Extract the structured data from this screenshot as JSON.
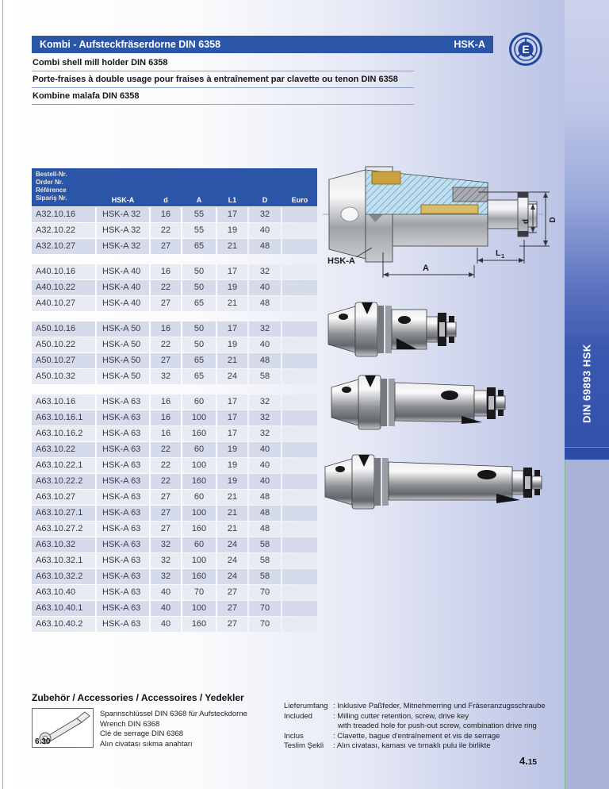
{
  "header": {
    "title": "Kombi - Aufsteckfräserdorne DIN 6358",
    "tag": "HSK-A",
    "subtitle_en": "Combi shell mill holder DIN 6358",
    "subtitle_fr": "Porte-fraises à double usage pour fraises à entraînement par clavette ou tenon DIN 6358",
    "subtitle_tr": "Kombine malafa DIN 6358",
    "logo_letter": "E"
  },
  "side_tab": {
    "label": "DIN 69893 HSK"
  },
  "drawing": {
    "labels": {
      "hsk": "HSK-A",
      "a": "A",
      "l1": "L",
      "l1_sub": "1",
      "d": "d",
      "dd": "D"
    }
  },
  "table": {
    "id_header_lines": [
      "Bestell-Nr.",
      "Order Nr.",
      "Référence",
      "Sipariş Nr."
    ],
    "columns": [
      "HSK-A",
      "d",
      "A",
      "L1",
      "D",
      "Euro"
    ],
    "groups": [
      [
        [
          "A32.10.16",
          "HSK-A 32",
          "16",
          "55",
          "17",
          "32",
          ""
        ],
        [
          "A32.10.22",
          "HSK-A 32",
          "22",
          "55",
          "19",
          "40",
          ""
        ],
        [
          "A32.10.27",
          "HSK-A 32",
          "27",
          "65",
          "21",
          "48",
          ""
        ]
      ],
      [
        [
          "A40.10.16",
          "HSK-A 40",
          "16",
          "50",
          "17",
          "32",
          ""
        ],
        [
          "A40.10.22",
          "HSK-A 40",
          "22",
          "50",
          "19",
          "40",
          ""
        ],
        [
          "A40.10.27",
          "HSK-A 40",
          "27",
          "65",
          "21",
          "48",
          ""
        ]
      ],
      [
        [
          "A50.10.16",
          "HSK-A 50",
          "16",
          "50",
          "17",
          "32",
          ""
        ],
        [
          "A50.10.22",
          "HSK-A 50",
          "22",
          "50",
          "19",
          "40",
          ""
        ],
        [
          "A50.10.27",
          "HSK-A 50",
          "27",
          "65",
          "21",
          "48",
          ""
        ],
        [
          "A50.10.32",
          "HSK-A 50",
          "32",
          "65",
          "24",
          "58",
          ""
        ]
      ],
      [
        [
          "A63.10.16",
          "HSK-A 63",
          "16",
          "60",
          "17",
          "32",
          ""
        ],
        [
          "A63.10.16.1",
          "HSK-A 63",
          "16",
          "100",
          "17",
          "32",
          ""
        ],
        [
          "A63.10.16.2",
          "HSK-A 63",
          "16",
          "160",
          "17",
          "32",
          ""
        ],
        [
          "A63.10.22",
          "HSK-A 63",
          "22",
          "60",
          "19",
          "40",
          ""
        ],
        [
          "A63.10.22.1",
          "HSK-A 63",
          "22",
          "100",
          "19",
          "40",
          ""
        ],
        [
          "A63.10.22.2",
          "HSK-A 63",
          "22",
          "160",
          "19",
          "40",
          ""
        ],
        [
          "A63.10.27",
          "HSK-A 63",
          "27",
          "60",
          "21",
          "48",
          ""
        ],
        [
          "A63.10.27.1",
          "HSK-A 63",
          "27",
          "100",
          "21",
          "48",
          ""
        ],
        [
          "A63.10.27.2",
          "HSK-A 63",
          "27",
          "160",
          "21",
          "48",
          ""
        ],
        [
          "A63.10.32",
          "HSK-A 63",
          "32",
          "60",
          "24",
          "58",
          ""
        ],
        [
          "A63.10.32.1",
          "HSK-A 63",
          "32",
          "100",
          "24",
          "58",
          ""
        ],
        [
          "A63.10.32.2",
          "HSK-A 63",
          "32",
          "160",
          "24",
          "58",
          ""
        ],
        [
          "A63.10.40",
          "HSK-A 63",
          "40",
          "70",
          "27",
          "70",
          ""
        ],
        [
          "A63.10.40.1",
          "HSK-A 63",
          "40",
          "100",
          "27",
          "70",
          ""
        ],
        [
          "A63.10.40.2",
          "HSK-A 63",
          "40",
          "160",
          "27",
          "70",
          ""
        ]
      ]
    ]
  },
  "accessories": {
    "heading": "Zubehör / Accessories / Accessoires / Yedekler",
    "thumb_ref": "6.30",
    "lines": [
      "Spannschlüssel DIN 6368 für Aufsteckdorne",
      "Wrench DIN 6368",
      "Clé de serrage DIN 6368",
      "Alın civatası sıkma anahtarı"
    ]
  },
  "delivery": {
    "rows": [
      {
        "label": "Lieferumfang",
        "text": ": Inklusive Paßfeder, Mitnehmerring und Fräseranzugsschraube"
      },
      {
        "label": "Included",
        "text": ": Milling cutter retention, screw, drive key",
        "cont": "with treaded hole  for push-out screw, combination drive ring"
      },
      {
        "label": "Inclus",
        "text": ": Clavette, bague d'entraînement et vis de serrage"
      },
      {
        "label": "Teslim Şekli",
        "text": ": Alın civatası, kaması ve tırnaklı pulu ile birlikte"
      }
    ]
  },
  "page_number": {
    "major": "4.",
    "minor": "15"
  },
  "colors": {
    "bar_blue": "#2b55a7",
    "row_dark": "#d6dbec",
    "row_light": "#e9ebf4",
    "band_blue": "#3552ab",
    "hairline_green": "#8fc08f",
    "hairline_blue": "#8fa0c8"
  }
}
